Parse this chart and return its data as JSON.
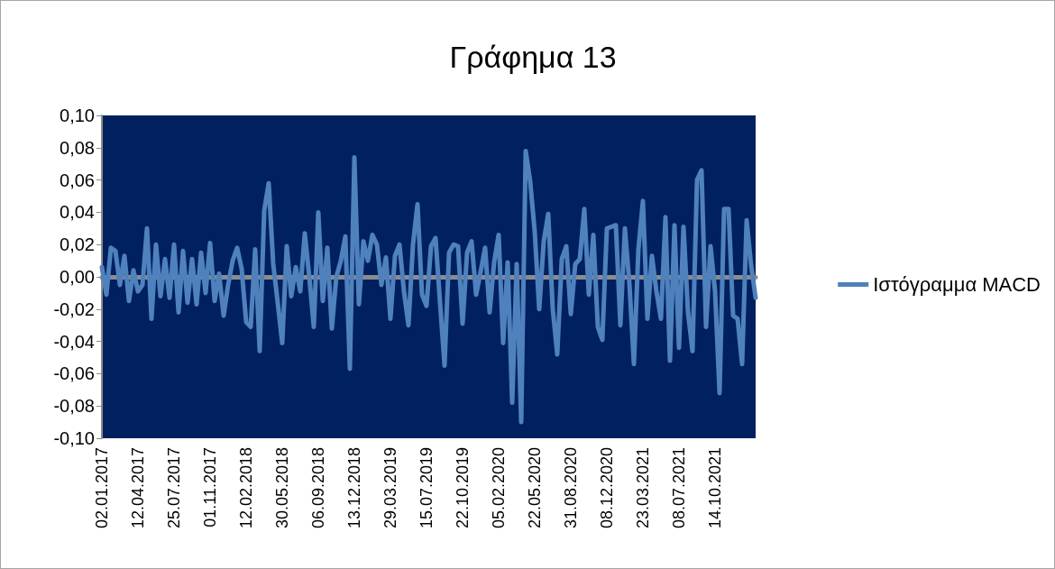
{
  "chart_data": {
    "type": "line",
    "title": "Γράφημα 13",
    "categories": [
      "02.01.2017",
      null,
      null,
      null,
      null,
      null,
      null,
      null,
      "12.04.2017",
      null,
      null,
      null,
      null,
      null,
      null,
      null,
      "25.07.2017",
      null,
      null,
      null,
      null,
      null,
      null,
      null,
      "01.11.2017",
      null,
      null,
      null,
      null,
      null,
      null,
      null,
      "12.02.2018",
      null,
      null,
      null,
      null,
      null,
      null,
      null,
      "30.05.2018",
      null,
      null,
      null,
      null,
      null,
      null,
      null,
      "06.09.2018",
      null,
      null,
      null,
      null,
      null,
      null,
      null,
      "13.12.2018",
      null,
      null,
      null,
      null,
      null,
      null,
      null,
      "29.03.2019",
      null,
      null,
      null,
      null,
      null,
      null,
      null,
      "15.07.2019",
      null,
      null,
      null,
      null,
      null,
      null,
      null,
      "22.10.2019",
      null,
      null,
      null,
      null,
      null,
      null,
      null,
      "05.02.2020",
      null,
      null,
      null,
      null,
      null,
      null,
      null,
      "22.05.2020",
      null,
      null,
      null,
      null,
      null,
      null,
      null,
      "31.08.2020",
      null,
      null,
      null,
      null,
      null,
      null,
      null,
      "08.12.2020",
      null,
      null,
      null,
      null,
      null,
      null,
      null,
      "23.03.2021",
      null,
      null,
      null,
      null,
      null,
      null,
      null,
      "08.07.2021",
      null,
      null,
      null,
      null,
      null,
      null,
      null,
      "14.10.2021",
      null,
      null,
      null,
      null,
      null,
      null,
      null,
      null,
      null
    ],
    "series": [
      {
        "name": "Ιστόγραμμα MACD",
        "color": "#4f81bd",
        "values": [
          0.006,
          -0.011,
          0.018,
          0.016,
          -0.005,
          0.013,
          -0.015,
          0.004,
          -0.009,
          -0.005,
          0.03,
          -0.026,
          0.02,
          -0.012,
          0.011,
          -0.013,
          0.02,
          -0.022,
          0.016,
          -0.016,
          0.011,
          -0.017,
          0.015,
          -0.01,
          0.021,
          -0.015,
          0.002,
          -0.024,
          -0.005,
          0.01,
          0.018,
          0.005,
          -0.028,
          -0.031,
          0.017,
          -0.046,
          0.041,
          0.058,
          0.008,
          -0.016,
          -0.041,
          0.019,
          -0.012,
          0.006,
          -0.009,
          0.027,
          0.0,
          -0.031,
          0.04,
          -0.015,
          0.018,
          -0.032,
          0.0,
          0.01,
          0.025,
          -0.057,
          0.074,
          -0.017,
          0.022,
          0.01,
          0.026,
          0.02,
          -0.005,
          0.012,
          -0.026,
          0.013,
          0.02,
          -0.009,
          -0.03,
          0.02,
          0.045,
          -0.011,
          -0.018,
          0.019,
          0.024,
          -0.016,
          -0.055,
          0.015,
          0.02,
          0.019,
          -0.029,
          0.015,
          0.022,
          -0.011,
          0.003,
          0.018,
          -0.022,
          0.009,
          0.026,
          -0.041,
          0.009,
          -0.078,
          0.008,
          -0.09,
          0.078,
          0.059,
          0.028,
          -0.02,
          0.022,
          0.039,
          -0.02,
          -0.048,
          0.011,
          0.019,
          -0.023,
          0.008,
          0.011,
          0.042,
          -0.011,
          0.026,
          -0.031,
          -0.039,
          0.03,
          0.031,
          0.032,
          -0.03,
          0.03,
          -0.004,
          -0.054,
          0.017,
          0.047,
          -0.026,
          0.013,
          -0.009,
          -0.026,
          0.037,
          -0.052,
          0.032,
          -0.044,
          0.031,
          -0.022,
          -0.046,
          0.06,
          0.066,
          -0.031,
          0.019,
          -0.009,
          -0.072,
          0.042,
          0.042,
          -0.024,
          -0.026,
          -0.054,
          0.035,
          0.007,
          -0.013
        ]
      }
    ],
    "ylim": [
      -0.1,
      0.1
    ],
    "yticks": [
      {
        "value": -0.1,
        "label": "-0,10"
      },
      {
        "value": -0.08,
        "label": "-0,08"
      },
      {
        "value": -0.06,
        "label": "-0,06"
      },
      {
        "value": -0.04,
        "label": "-0,04"
      },
      {
        "value": -0.02,
        "label": "-0,02"
      },
      {
        "value": 0,
        "label": "0,00"
      },
      {
        "value": 0.02,
        "label": "0,02"
      },
      {
        "value": 0.04,
        "label": "0,04"
      },
      {
        "value": 0.06,
        "label": "0,06"
      },
      {
        "value": 0.08,
        "label": "0,08"
      },
      {
        "value": 0.1,
        "label": "0,10"
      }
    ],
    "legend": "right",
    "marker": "none",
    "line_style": "solid"
  }
}
